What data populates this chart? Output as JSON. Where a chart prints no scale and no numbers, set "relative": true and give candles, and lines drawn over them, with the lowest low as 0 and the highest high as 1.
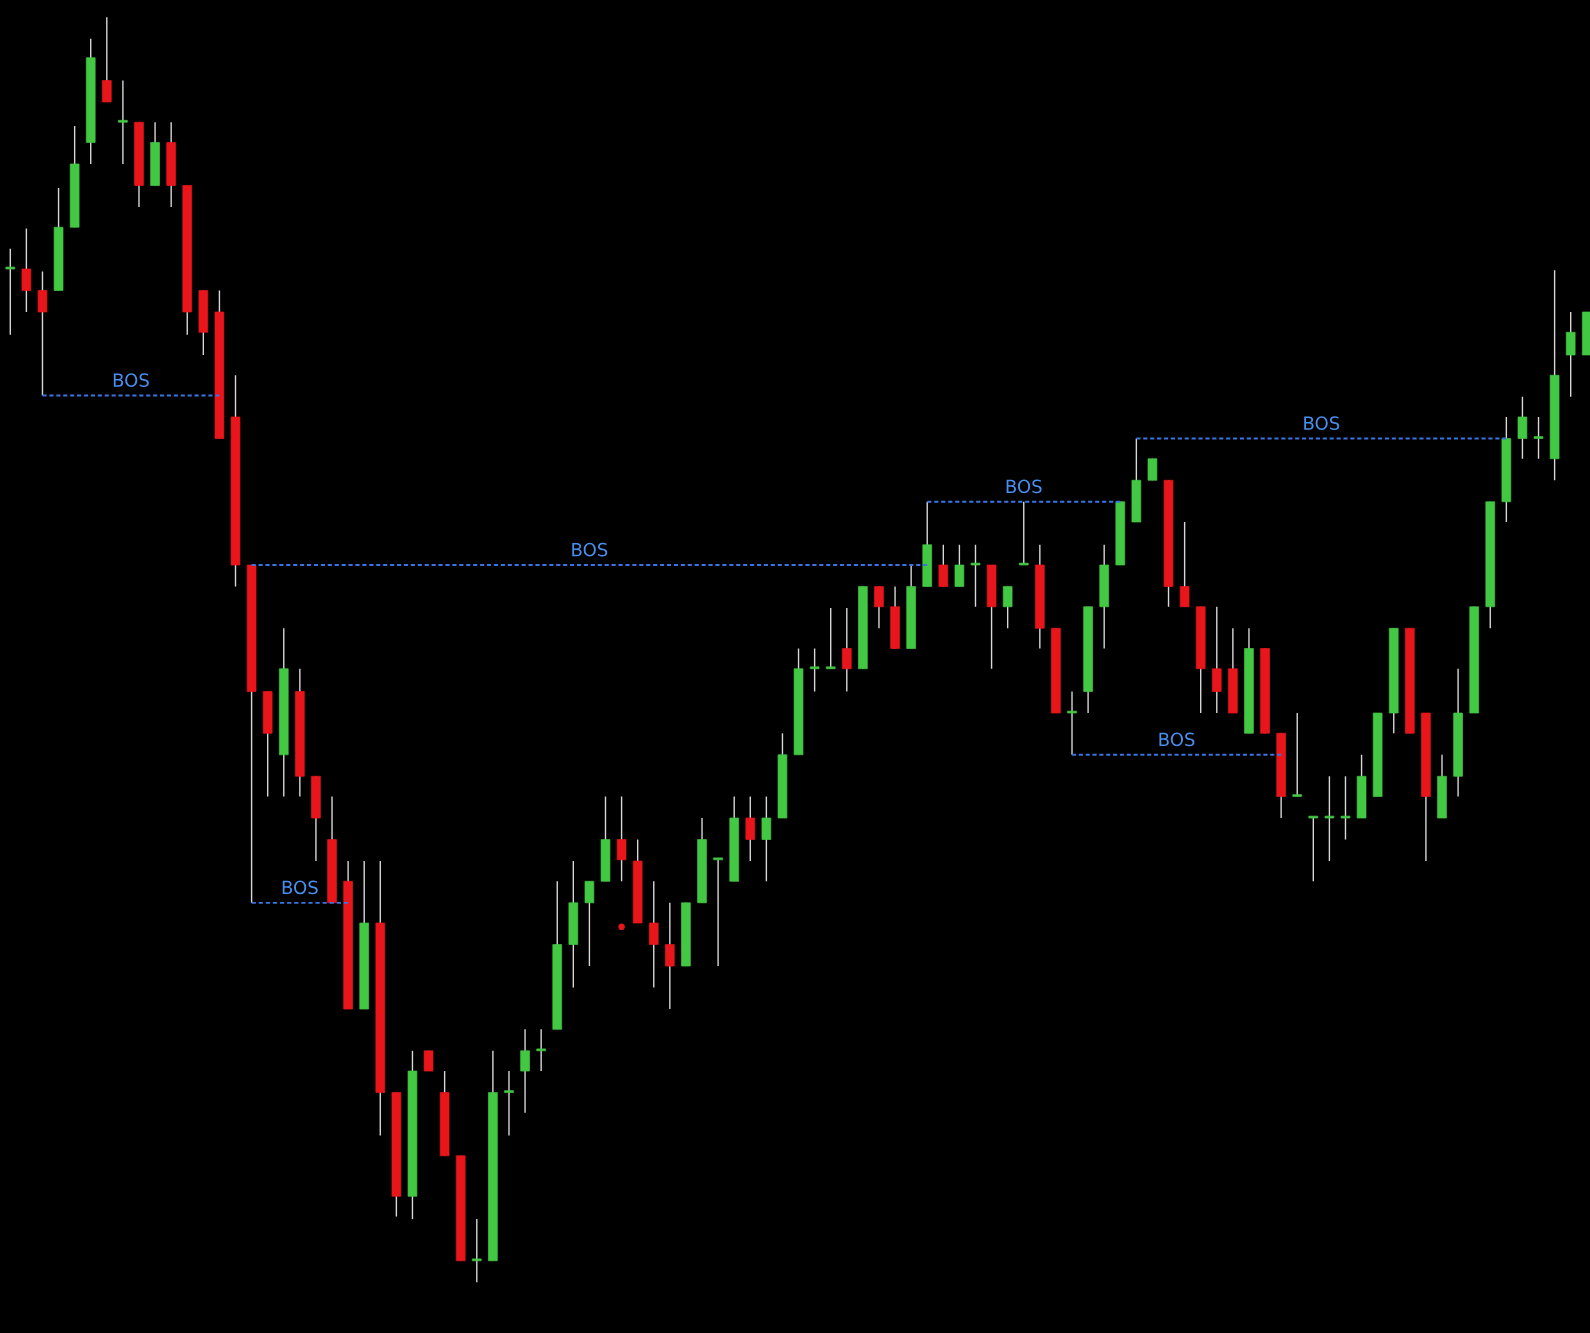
{
  "chart_data": {
    "type": "candlestick",
    "relative": true,
    "grid": false,
    "categories": [
      null,
      null,
      null,
      null,
      null,
      null,
      null,
      null,
      null,
      null,
      null,
      null,
      null,
      null,
      null,
      null,
      null,
      null,
      null,
      null,
      null,
      null,
      null,
      null,
      null,
      null,
      null,
      null,
      null,
      null,
      null,
      null,
      null,
      null,
      null,
      null,
      null,
      null,
      null,
      null,
      null,
      null,
      null,
      null,
      null,
      null,
      null,
      null,
      null,
      null,
      null,
      null,
      null,
      null,
      null,
      null,
      null,
      null,
      null,
      null,
      null,
      null,
      null,
      null,
      null,
      null,
      null,
      null,
      null,
      null,
      null,
      null,
      null,
      null,
      null,
      null,
      null,
      null,
      null,
      null,
      null,
      null,
      null,
      null,
      null,
      null,
      null,
      null,
      null,
      null,
      null,
      null,
      null,
      null,
      null,
      null,
      null,
      null,
      null
    ],
    "colors": [
      "#43c843",
      "#e8161b",
      "#e8161b",
      "#43c843",
      "#43c843",
      "#43c843",
      "#e8161b",
      "#43c843",
      "#e8161b",
      "#43c843",
      "#e8161b",
      "#e8161b",
      "#e8161b",
      "#e8161b",
      "#e8161b",
      "#e8161b",
      "#e8161b",
      "#43c843",
      "#e8161b",
      "#e8161b",
      "#e8161b",
      "#e8161b",
      "#43c843",
      "#e8161b",
      "#e8161b",
      "#43c843",
      "#e8161b",
      "#e8161b",
      "#e8161b",
      "#43c843",
      "#43c843",
      "#43c843",
      "#43c843",
      "#43c843",
      "#43c843",
      "#43c843",
      "#43c843",
      "#43c843",
      "#e8161b",
      "#e8161b",
      "#e8161b",
      "#e8161b",
      "#43c843",
      "#43c843",
      "#43c843",
      "#43c843",
      "#e8161b",
      "#43c843",
      "#43c843",
      "#43c843",
      "#43c843",
      "#43c843",
      "#e8161b",
      "#43c843",
      "#e8161b",
      "#e8161b",
      "#43c843",
      "#43c843",
      "#e8161b",
      "#43c843",
      "#43c843",
      "#e8161b",
      "#43c843",
      "#43c843",
      "#e8161b",
      "#e8161b",
      "#43c843",
      "#43c843",
      "#43c843",
      "#43c843",
      "#43c843",
      "#43c843",
      "#e8161b",
      "#e8161b",
      "#e8161b",
      "#e8161b",
      "#e8161b",
      "#43c843",
      "#e8161b",
      "#e8161b",
      "#43c843",
      "#43c843",
      "#43c843",
      "#43c843",
      "#43c843",
      "#43c843",
      "#43c843",
      "#e8161b",
      "#e8161b",
      "#43c843",
      "#43c843",
      "#43c843",
      "#43c843",
      "#43c843",
      "#43c843",
      "#43c843",
      "#43c843",
      "#43c843",
      "#43c843"
    ],
    "ohlc": [
      [
        0.801,
        0.817,
        0.749,
        0.801
      ],
      [
        0.801,
        0.833,
        0.767,
        0.784
      ],
      [
        0.784,
        0.799,
        0.701,
        0.767
      ],
      [
        0.784,
        0.865,
        0.784,
        0.834
      ],
      [
        0.834,
        0.914,
        0.834,
        0.884
      ],
      [
        0.901,
        0.983,
        0.884,
        0.968
      ],
      [
        0.95,
        1.0,
        0.933,
        0.933
      ],
      [
        0.917,
        0.95,
        0.884,
        0.917
      ],
      [
        0.917,
        0.917,
        0.85,
        0.867
      ],
      [
        0.867,
        0.917,
        0.867,
        0.901
      ],
      [
        0.901,
        0.917,
        0.85,
        0.867
      ],
      [
        0.867,
        0.867,
        0.749,
        0.767
      ],
      [
        0.784,
        0.784,
        0.733,
        0.751
      ],
      [
        0.767,
        0.784,
        0.667,
        0.667
      ],
      [
        0.684,
        0.717,
        0.55,
        0.567
      ],
      [
        0.567,
        0.567,
        0.3,
        0.467
      ],
      [
        0.467,
        0.467,
        0.384,
        0.434
      ],
      [
        0.417,
        0.517,
        0.384,
        0.485
      ],
      [
        0.467,
        0.485,
        0.384,
        0.4
      ],
      [
        0.4,
        0.4,
        0.333,
        0.367
      ],
      [
        0.35,
        0.384,
        0.3,
        0.3
      ],
      [
        0.317,
        0.333,
        0.216,
        0.216
      ],
      [
        0.216,
        0.333,
        0.216,
        0.284
      ],
      [
        0.284,
        0.333,
        0.116,
        0.15
      ],
      [
        0.15,
        0.15,
        0.052,
        0.068
      ],
      [
        0.068,
        0.183,
        0.05,
        0.167
      ],
      [
        0.183,
        0.183,
        0.167,
        0.167
      ],
      [
        0.15,
        0.167,
        0.1,
        0.1
      ],
      [
        0.1,
        0.1,
        0.017,
        0.017
      ],
      [
        0.017,
        0.05,
        0.0,
        0.017
      ],
      [
        0.017,
        0.183,
        0.017,
        0.15
      ],
      [
        0.15,
        0.167,
        0.116,
        0.15
      ],
      [
        0.167,
        0.2,
        0.134,
        0.183
      ],
      [
        0.183,
        0.2,
        0.167,
        0.183
      ],
      [
        0.2,
        0.317,
        0.2,
        0.267
      ],
      [
        0.267,
        0.333,
        0.233,
        0.3
      ],
      [
        0.3,
        0.317,
        0.25,
        0.317
      ],
      [
        0.317,
        0.384,
        0.317,
        0.35
      ],
      [
        0.35,
        0.384,
        0.317,
        0.334
      ],
      [
        0.333,
        0.35,
        0.284,
        0.284
      ],
      [
        0.284,
        0.317,
        0.233,
        0.267
      ],
      [
        0.267,
        0.3,
        0.216,
        0.25
      ],
      [
        0.25,
        0.3,
        0.25,
        0.3
      ],
      [
        0.3,
        0.367,
        0.3,
        0.35
      ],
      [
        0.334,
        0.334,
        0.25,
        0.334
      ],
      [
        0.317,
        0.384,
        0.317,
        0.367
      ],
      [
        0.367,
        0.384,
        0.333,
        0.35
      ],
      [
        0.35,
        0.384,
        0.317,
        0.367
      ],
      [
        0.367,
        0.434,
        0.367,
        0.417
      ],
      [
        0.417,
        0.501,
        0.417,
        0.485
      ],
      [
        0.485,
        0.501,
        0.467,
        0.485
      ],
      [
        0.485,
        0.533,
        0.485,
        0.485
      ],
      [
        0.501,
        0.533,
        0.467,
        0.485
      ],
      [
        0.485,
        0.55,
        0.485,
        0.55
      ],
      [
        0.55,
        0.55,
        0.517,
        0.534
      ],
      [
        0.534,
        0.55,
        0.501,
        0.501
      ],
      [
        0.501,
        0.567,
        0.501,
        0.55
      ],
      [
        0.55,
        0.617,
        0.55,
        0.583
      ],
      [
        0.567,
        0.583,
        0.55,
        0.55
      ],
      [
        0.55,
        0.583,
        0.55,
        0.567
      ],
      [
        0.567,
        0.583,
        0.534,
        0.567
      ],
      [
        0.567,
        0.567,
        0.485,
        0.534
      ],
      [
        0.534,
        0.55,
        0.517,
        0.55
      ],
      [
        0.567,
        0.617,
        0.567,
        0.567
      ],
      [
        0.567,
        0.583,
        0.501,
        0.517
      ],
      [
        0.517,
        0.517,
        0.45,
        0.45
      ],
      [
        0.45,
        0.467,
        0.417,
        0.45
      ],
      [
        0.467,
        0.534,
        0.45,
        0.534
      ],
      [
        0.534,
        0.583,
        0.501,
        0.567
      ],
      [
        0.567,
        0.617,
        0.567,
        0.617
      ],
      [
        0.601,
        0.667,
        0.601,
        0.634
      ],
      [
        0.634,
        0.651,
        0.634,
        0.651
      ],
      [
        0.634,
        0.634,
        0.534,
        0.55
      ],
      [
        0.55,
        0.601,
        0.534,
        0.534
      ],
      [
        0.534,
        0.534,
        0.45,
        0.485
      ],
      [
        0.485,
        0.534,
        0.45,
        0.467
      ],
      [
        0.485,
        0.517,
        0.45,
        0.45
      ],
      [
        0.434,
        0.517,
        0.434,
        0.501
      ],
      [
        0.501,
        0.501,
        0.434,
        0.434
      ],
      [
        0.434,
        0.434,
        0.367,
        0.384
      ],
      [
        0.384,
        0.45,
        0.384,
        0.384
      ],
      [
        0.367,
        0.367,
        0.317,
        0.367
      ],
      [
        0.367,
        0.4,
        0.333,
        0.367
      ],
      [
        0.367,
        0.4,
        0.35,
        0.367
      ],
      [
        0.367,
        0.417,
        0.367,
        0.4
      ],
      [
        0.384,
        0.45,
        0.384,
        0.45
      ],
      [
        0.45,
        0.517,
        0.434,
        0.517
      ],
      [
        0.517,
        0.517,
        0.434,
        0.434
      ],
      [
        0.45,
        0.45,
        0.333,
        0.384
      ],
      [
        0.367,
        0.417,
        0.367,
        0.4
      ],
      [
        0.4,
        0.485,
        0.384,
        0.45
      ],
      [
        0.45,
        0.534,
        0.45,
        0.534
      ],
      [
        0.534,
        0.617,
        0.517,
        0.617
      ],
      [
        0.617,
        0.684,
        0.601,
        0.667
      ],
      [
        0.667,
        0.7,
        0.651,
        0.684
      ],
      [
        0.667,
        0.684,
        0.651,
        0.667
      ],
      [
        0.651,
        0.8,
        0.634,
        0.717
      ],
      [
        0.733,
        0.767,
        0.7,
        0.751
      ],
      [
        0.733,
        0.767,
        0.733,
        0.767
      ]
    ],
    "series": [
      {
        "type": "line",
        "color": "#3b73e0",
        "line_style": "dashed",
        "values": [
          null,
          null,
          0.701,
          0.701,
          0.701,
          0.701,
          0.701,
          0.701,
          0.701,
          0.701,
          0.701,
          0.701,
          0.701,
          0.701,
          null,
          null,
          null,
          null,
          null,
          null,
          null,
          null,
          null,
          null,
          null,
          null,
          null,
          null,
          null,
          null,
          null,
          null,
          null,
          null,
          null,
          null,
          null,
          null,
          null,
          null,
          null,
          null,
          null,
          null,
          null,
          null,
          null,
          null,
          null,
          null,
          null,
          null,
          null,
          null,
          null,
          null,
          null,
          null,
          null,
          null,
          null,
          null,
          null,
          null,
          null,
          null,
          null,
          null,
          null,
          null,
          null,
          null,
          null,
          null,
          null,
          null,
          null,
          null,
          null,
          null,
          null,
          null,
          null,
          null,
          null,
          null,
          null,
          null,
          null,
          null,
          null,
          null,
          null,
          null,
          null,
          null,
          null,
          null,
          null
        ]
      },
      {
        "type": "line",
        "color": "#3b73e0",
        "line_style": "dashed",
        "values": [
          null,
          null,
          null,
          null,
          null,
          null,
          null,
          null,
          null,
          null,
          null,
          null,
          null,
          null,
          null,
          0.567,
          0.567,
          0.567,
          0.567,
          0.567,
          0.567,
          0.567,
          0.567,
          0.567,
          0.567,
          0.567,
          0.567,
          0.567,
          0.567,
          0.567,
          0.567,
          0.567,
          0.567,
          0.567,
          0.567,
          0.567,
          0.567,
          0.567,
          0.567,
          0.567,
          0.567,
          0.567,
          0.567,
          0.567,
          0.567,
          0.567,
          0.567,
          0.567,
          0.567,
          0.567,
          0.567,
          0.567,
          0.567,
          0.567,
          0.567,
          0.567,
          0.567,
          0.567,
          null,
          null,
          null,
          null,
          null,
          null,
          null,
          null,
          null,
          null,
          null,
          null,
          null,
          null,
          null,
          null,
          null,
          null,
          null,
          null,
          null,
          null,
          null,
          null,
          null,
          null,
          null,
          null,
          null,
          null,
          null,
          null,
          null,
          null,
          null,
          null,
          null,
          null,
          null,
          null,
          null
        ]
      },
      {
        "type": "line",
        "color": "#3b73e0",
        "line_style": "dashed",
        "values": [
          null,
          null,
          null,
          null,
          null,
          null,
          null,
          null,
          null,
          null,
          null,
          null,
          null,
          null,
          null,
          0.3,
          0.3,
          0.3,
          0.3,
          0.3,
          0.3,
          0.3,
          null,
          null,
          null,
          null,
          null,
          null,
          null,
          null,
          null,
          null,
          null,
          null,
          null,
          null,
          null,
          null,
          null,
          null,
          null,
          null,
          null,
          null,
          null,
          null,
          null,
          null,
          null,
          null,
          null,
          null,
          null,
          null,
          null,
          null,
          null,
          null,
          null,
          null,
          null,
          null,
          null,
          null,
          null,
          null,
          null,
          null,
          null,
          null,
          null,
          null,
          null,
          null,
          null,
          null,
          null,
          null,
          null,
          null,
          null,
          null,
          null,
          null,
          null,
          null,
          null,
          null,
          null,
          null,
          null,
          null,
          null,
          null,
          null,
          null,
          null,
          null,
          null
        ]
      },
      {
        "type": "line",
        "color": "#3b73e0",
        "line_style": "dashed",
        "values": [
          null,
          null,
          null,
          null,
          null,
          null,
          null,
          null,
          null,
          null,
          null,
          null,
          null,
          null,
          null,
          null,
          null,
          null,
          null,
          null,
          null,
          null,
          null,
          null,
          null,
          null,
          null,
          null,
          null,
          null,
          null,
          null,
          null,
          null,
          null,
          null,
          null,
          null,
          null,
          null,
          null,
          null,
          null,
          null,
          null,
          null,
          null,
          null,
          null,
          null,
          null,
          null,
          null,
          null,
          null,
          null,
          null,
          0.617,
          0.617,
          0.617,
          0.617,
          0.617,
          0.617,
          0.617,
          0.617,
          0.617,
          0.617,
          0.617,
          0.617,
          0.617,
          null,
          null,
          null,
          null,
          null,
          null,
          null,
          null,
          null,
          null,
          null,
          null,
          null,
          null,
          null,
          null,
          null,
          null,
          null,
          null,
          null,
          null,
          null,
          null,
          null,
          null,
          null,
          null,
          null
        ]
      },
      {
        "type": "line",
        "color": "#3b73e0",
        "line_style": "dashed",
        "values": [
          null,
          null,
          null,
          null,
          null,
          null,
          null,
          null,
          null,
          null,
          null,
          null,
          null,
          null,
          null,
          null,
          null,
          null,
          null,
          null,
          null,
          null,
          null,
          null,
          null,
          null,
          null,
          null,
          null,
          null,
          null,
          null,
          null,
          null,
          null,
          null,
          null,
          null,
          null,
          null,
          null,
          null,
          null,
          null,
          null,
          null,
          null,
          null,
          null,
          null,
          null,
          null,
          null,
          null,
          null,
          null,
          null,
          null,
          null,
          null,
          null,
          null,
          null,
          null,
          null,
          null,
          null,
          null,
          null,
          null,
          0.667,
          0.667,
          0.667,
          0.667,
          0.667,
          0.667,
          0.667,
          0.667,
          0.667,
          0.667,
          0.667,
          0.667,
          0.667,
          0.667,
          0.667,
          0.667,
          0.667,
          0.667,
          0.667,
          0.667,
          0.667,
          0.667,
          0.667,
          0.667,
          null,
          null,
          null,
          null,
          null
        ]
      },
      {
        "type": "line",
        "color": "#3b73e0",
        "line_style": "dashed",
        "values": [
          null,
          null,
          null,
          null,
          null,
          null,
          null,
          null,
          null,
          null,
          null,
          null,
          null,
          null,
          null,
          null,
          null,
          null,
          null,
          null,
          null,
          null,
          null,
          null,
          null,
          null,
          null,
          null,
          null,
          null,
          null,
          null,
          null,
          null,
          null,
          null,
          null,
          null,
          null,
          null,
          null,
          null,
          null,
          null,
          null,
          null,
          null,
          null,
          null,
          null,
          null,
          null,
          null,
          null,
          null,
          null,
          null,
          null,
          null,
          null,
          null,
          null,
          null,
          null,
          null,
          null,
          0.417,
          0.417,
          0.417,
          0.417,
          0.417,
          0.417,
          0.417,
          0.417,
          0.417,
          0.417,
          0.417,
          0.417,
          0.417,
          0.417,
          null,
          null,
          null,
          null,
          null,
          null,
          null,
          null,
          null,
          null,
          null,
          null,
          null,
          null,
          null,
          null,
          null,
          null,
          null
        ]
      },
      {
        "type": "scatter",
        "color": "#e8161b",
        "marker": "circle",
        "values": [
          null,
          null,
          null,
          null,
          null,
          null,
          null,
          null,
          null,
          null,
          null,
          null,
          null,
          null,
          null,
          null,
          null,
          null,
          null,
          null,
          null,
          null,
          null,
          null,
          null,
          null,
          null,
          null,
          null,
          null,
          null,
          null,
          null,
          null,
          null,
          null,
          null,
          null,
          0.281,
          null,
          null,
          null,
          null,
          null,
          null,
          null,
          null,
          null,
          null,
          null,
          null,
          null,
          null,
          null,
          null,
          null,
          null,
          null,
          null,
          null,
          null,
          null,
          null,
          null,
          null,
          null,
          null,
          null,
          null,
          null,
          null,
          null,
          null,
          null,
          null,
          null,
          null,
          null,
          null,
          null,
          null,
          null,
          null,
          null,
          null,
          null,
          null,
          null,
          null,
          null,
          null,
          null,
          null,
          null,
          null,
          null,
          null,
          null,
          null
        ]
      }
    ],
    "annotations": [
      {
        "text": "BOS",
        "y": 0.701
      },
      {
        "text": "BOS",
        "y": 0.567
      },
      {
        "text": "BOS",
        "y": 0.3
      },
      {
        "text": "BOS",
        "y": 0.617
      },
      {
        "text": "BOS",
        "y": 0.667
      },
      {
        "text": "BOS",
        "y": 0.417
      }
    ]
  }
}
